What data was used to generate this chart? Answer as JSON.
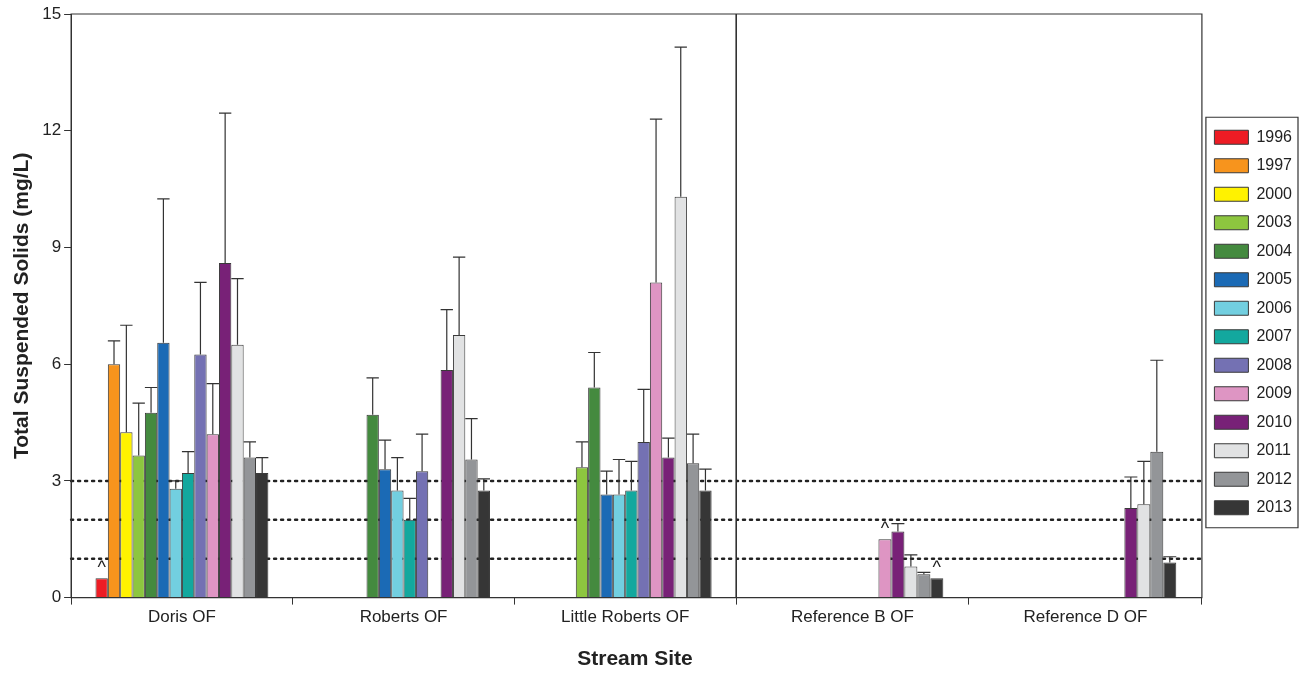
{
  "chart_data": [
    {
      "type": "bar",
      "xlabel": "Stream Site",
      "ylabel": "Total Suspended Solids (mg/L)",
      "categories": [
        "Doris OF",
        "Roberts OF",
        "Little Roberts OF"
      ],
      "ylim": [
        0,
        15
      ],
      "yticks": [
        0,
        3,
        6,
        9,
        12,
        15
      ],
      "grid": false,
      "series": [
        {
          "color": "#ed1c24",
          "values": [
            0.5,
            null,
            null
          ],
          "value_labels": [
            "^",
            null,
            null
          ]
        },
        {
          "color": "#f7941d",
          "values": [
            6.0,
            null,
            null
          ],
          "errors": [
            [
              6.0,
              6.6
            ],
            null,
            null
          ]
        },
        {
          "color": "#fff200",
          "values": [
            4.25,
            null,
            null
          ],
          "errors": [
            [
              4.25,
              7.0
            ],
            null,
            null
          ]
        },
        {
          "color": "#8dc63f",
          "values": [
            3.65,
            null,
            3.35
          ],
          "errors": [
            [
              3.65,
              5.0
            ],
            null,
            [
              3.35,
              4.0
            ]
          ]
        },
        {
          "color": "#448a3f",
          "values": [
            4.75,
            4.7,
            5.4
          ],
          "errors": [
            [
              4.75,
              5.4
            ],
            [
              4.7,
              5.65
            ],
            [
              5.4,
              6.3
            ]
          ]
        },
        {
          "color": "#1b6ab5",
          "values": [
            6.55,
            3.3,
            2.65
          ],
          "errors": [
            [
              6.55,
              10.25
            ],
            [
              3.3,
              4.05
            ],
            [
              2.65,
              3.25
            ]
          ]
        },
        {
          "color": "#72cfe0",
          "values": [
            2.8,
            2.75,
            2.65
          ],
          "errors": [
            [
              2.8,
              3.0
            ],
            [
              2.75,
              3.6
            ],
            [
              2.65,
              3.55
            ]
          ]
        },
        {
          "color": "#13a89e",
          "values": [
            3.2,
            2.0,
            2.75
          ],
          "errors": [
            [
              3.2,
              3.75
            ],
            [
              2.0,
              2.55
            ],
            [
              2.75,
              3.5
            ]
          ]
        },
        {
          "color": "#7471b3",
          "values": [
            6.25,
            3.25,
            4.0
          ],
          "errors": [
            [
              6.25,
              8.1
            ],
            [
              3.25,
              4.2
            ],
            [
              4.0,
              5.35
            ]
          ]
        },
        {
          "color": "#de95c3",
          "values": [
            4.2,
            null,
            8.1
          ],
          "errors": [
            [
              4.2,
              5.5
            ],
            null,
            [
              8.1,
              12.3
            ]
          ]
        },
        {
          "color": "#782177",
          "values": [
            8.6,
            5.85,
            3.6
          ],
          "errors": [
            [
              8.6,
              12.45
            ],
            [
              5.85,
              7.4
            ],
            [
              3.6,
              4.1
            ]
          ]
        },
        {
          "color": "#e1e2e3",
          "values": [
            6.5,
            6.75,
            10.3
          ],
          "errors": [
            [
              6.5,
              8.2
            ],
            [
              6.75,
              8.75
            ],
            [
              10.3,
              14.15
            ]
          ]
        },
        {
          "color": "#939598",
          "values": [
            3.6,
            3.55,
            3.45
          ],
          "errors": [
            [
              3.6,
              4.0
            ],
            [
              3.55,
              4.6
            ],
            [
              3.45,
              4.2
            ]
          ]
        },
        {
          "color": "#363636",
          "values": [
            3.2,
            2.75,
            2.75
          ],
          "errors": [
            [
              3.2,
              3.6
            ],
            [
              2.75,
              3.05
            ],
            [
              2.75,
              3.3
            ]
          ]
        }
      ],
      "ref_lines": [
        {
          "axis": "y",
          "value": 1,
          "line_style": "dotted"
        },
        {
          "axis": "y",
          "value": 2,
          "line_style": "dotted"
        },
        {
          "axis": "y",
          "value": 3,
          "line_style": "dotted"
        }
      ]
    },
    {
      "type": "bar",
      "categories": [
        "Reference B OF",
        "Reference D OF"
      ],
      "ylim": [
        0,
        15
      ],
      "tick_labels": "x",
      "grid": false,
      "legend": "right",
      "series": [
        {
          "name": "1996",
          "color": "#ed1c24",
          "values": [
            null,
            null
          ]
        },
        {
          "name": "1997",
          "color": "#f7941d",
          "values": [
            null,
            null
          ]
        },
        {
          "name": "2000",
          "color": "#fff200",
          "values": [
            null,
            null
          ]
        },
        {
          "name": "2003",
          "color": "#8dc63f",
          "values": [
            null,
            null
          ]
        },
        {
          "name": "2004",
          "color": "#448a3f",
          "values": [
            null,
            null
          ]
        },
        {
          "name": "2005",
          "color": "#1b6ab5",
          "values": [
            null,
            null
          ]
        },
        {
          "name": "2006",
          "color": "#72cfe0",
          "values": [
            null,
            null
          ]
        },
        {
          "name": "2007",
          "color": "#13a89e",
          "values": [
            null,
            null
          ]
        },
        {
          "name": "2008",
          "color": "#7471b3",
          "values": [
            null,
            null
          ]
        },
        {
          "name": "2009",
          "color": "#de95c3",
          "values": [
            1.5,
            null
          ],
          "value_labels": [
            "^",
            null
          ]
        },
        {
          "name": "2010",
          "color": "#782177",
          "values": [
            1.7,
            2.3
          ],
          "errors": [
            [
              1.7,
              1.9
            ],
            [
              2.3,
              3.1
            ]
          ]
        },
        {
          "name": "2011",
          "color": "#e1e2e3",
          "values": [
            0.8,
            2.4
          ],
          "errors": [
            [
              0.8,
              1.1
            ],
            [
              2.4,
              3.5
            ]
          ]
        },
        {
          "name": "2012",
          "color": "#939598",
          "values": [
            0.6,
            3.75
          ],
          "errors": [
            [
              0.6,
              0.65
            ],
            [
              3.75,
              6.1
            ]
          ]
        },
        {
          "name": "2013",
          "color": "#363636",
          "values": [
            0.5,
            0.9
          ],
          "value_labels": [
            "^",
            null
          ],
          "errors": [
            null,
            [
              0.9,
              1.05
            ]
          ]
        }
      ],
      "ref_lines": [
        {
          "axis": "y",
          "value": 1,
          "line_style": "dotted"
        },
        {
          "axis": "y",
          "value": 2,
          "line_style": "dotted"
        },
        {
          "axis": "y",
          "value": 3,
          "line_style": "dotted"
        }
      ]
    }
  ]
}
